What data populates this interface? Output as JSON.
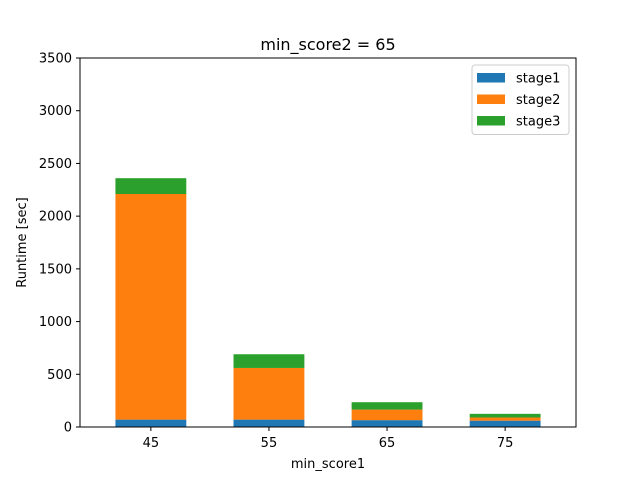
{
  "chart_data": {
    "type": "bar",
    "stacked": true,
    "title": "min_score2 = 65",
    "xlabel": "min_score1",
    "ylabel": "Runtime [sec]",
    "categories": [
      "45",
      "55",
      "65",
      "75"
    ],
    "ylim": [
      0,
      3500
    ],
    "yticks": [
      "0",
      "500",
      "1000",
      "1500",
      "2000",
      "2500",
      "3000",
      "3500"
    ],
    "grid": false,
    "legend_position": "top-right",
    "series": [
      {
        "name": "stage1",
        "color": "#1f77b4",
        "values": [
          70,
          70,
          65,
          60
        ]
      },
      {
        "name": "stage2",
        "color": "#ff7f0e",
        "values": [
          2140,
          490,
          100,
          30
        ]
      },
      {
        "name": "stage3",
        "color": "#2ca02c",
        "values": [
          150,
          130,
          70,
          35
        ]
      }
    ]
  }
}
